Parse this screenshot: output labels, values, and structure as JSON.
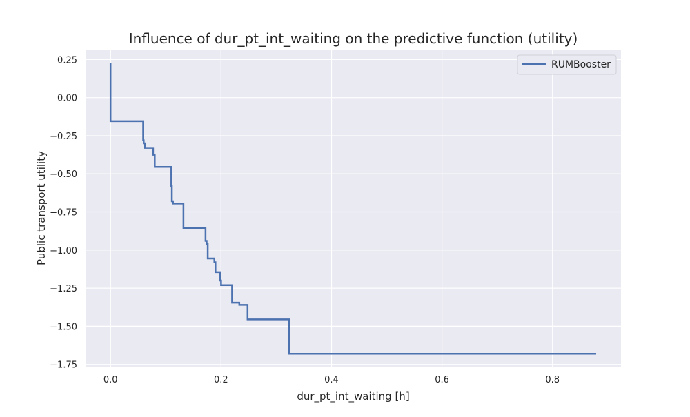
{
  "chart_data": {
    "type": "line",
    "title": "Influence of dur_pt_int_waiting on the predictive function (utility)",
    "xlabel": "dur_pt_int_waiting [h]",
    "ylabel": "Public transport utility",
    "xlim": [
      -0.044,
      0.924
    ],
    "ylim": [
      -1.765,
      0.315
    ],
    "xticks": [
      0.0,
      0.2,
      0.4,
      0.6,
      0.8
    ],
    "xtick_labels": [
      "0.0",
      "0.2",
      "0.4",
      "0.6",
      "0.8"
    ],
    "yticks": [
      0.25,
      0.0,
      -0.25,
      -0.5,
      -0.75,
      -1.0,
      -1.25,
      -1.5,
      -1.75
    ],
    "ytick_labels": [
      "0.25",
      "0.00",
      "−0.25",
      "−0.50",
      "−0.75",
      "−1.00",
      "−1.25",
      "−1.50",
      "−1.75"
    ],
    "grid": true,
    "legend_position": "top-right",
    "step": "post",
    "series": [
      {
        "name": "RUMBooster",
        "color": "#4c72b0",
        "x": [
          0.0,
          0.0,
          0.059,
          0.06,
          0.062,
          0.077,
          0.08,
          0.11,
          0.111,
          0.113,
          0.132,
          0.172,
          0.174,
          0.176,
          0.188,
          0.19,
          0.198,
          0.2,
          0.22,
          0.233,
          0.248,
          0.323,
          0.879
        ],
        "y": [
          0.225,
          -0.155,
          -0.28,
          -0.3,
          -0.33,
          -0.375,
          -0.455,
          -0.58,
          -0.68,
          -0.695,
          -0.855,
          -0.94,
          -0.96,
          -1.055,
          -1.08,
          -1.145,
          -1.2,
          -1.23,
          -1.345,
          -1.36,
          -1.455,
          -1.68,
          -1.68
        ]
      }
    ]
  }
}
